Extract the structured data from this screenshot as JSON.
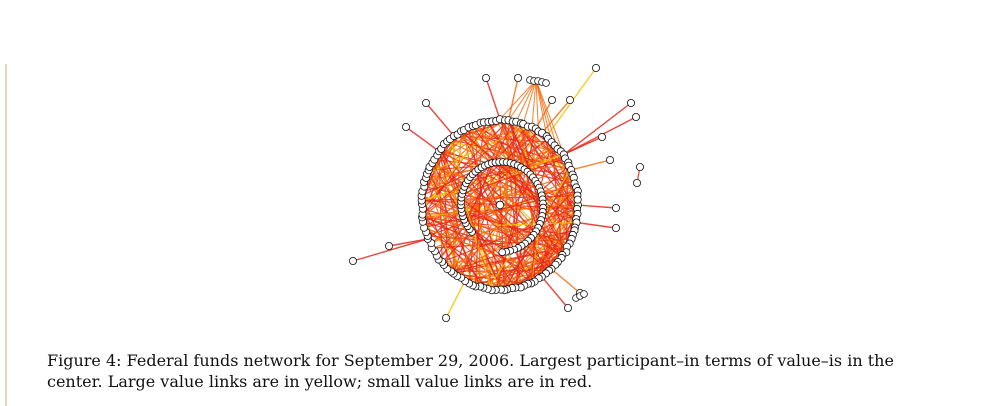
{
  "figure": {
    "caption": "Figure 4: Federal funds network for September 29, 2006. Largest participant–in terms of value–is in the center. Large value links are in yellow; small value links are in red.",
    "colors": {
      "small_value_link": "#e8241a",
      "medium_value_link": "#f46b0e",
      "large_value_link": "#f5c400",
      "node_fill": "#ffffff",
      "node_stroke": "#111111"
    }
  }
}
